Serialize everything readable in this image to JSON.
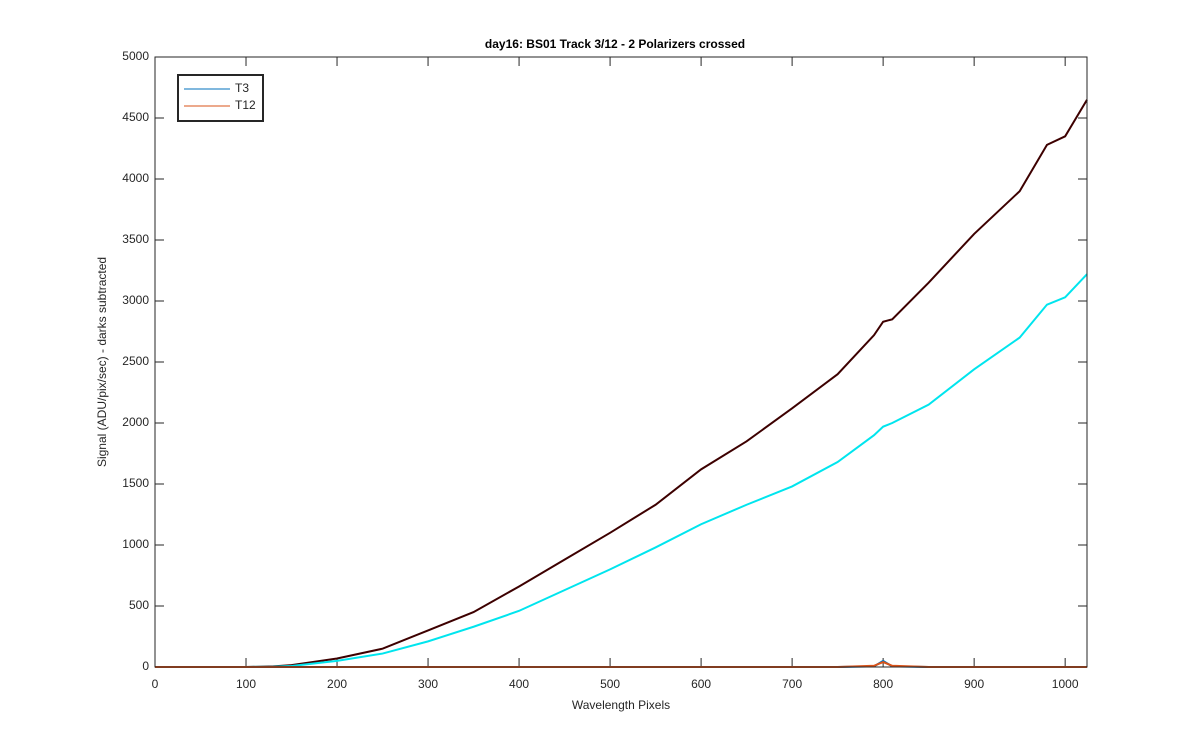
{
  "chart_data": {
    "type": "line",
    "title": "day16: BS01  Track 3/12 - 2 Polarizers crossed",
    "x_label": "Wavelength Pixels",
    "y_label": "Signal (ADU/pix/sec) - darks subtracted",
    "x": [
      0,
      50,
      100,
      130,
      150,
      200,
      250,
      300,
      350,
      400,
      450,
      500,
      550,
      600,
      650,
      700,
      750,
      790,
      800,
      810,
      850,
      900,
      950,
      980,
      1000,
      1024
    ],
    "series": [
      {
        "name": "T3",
        "color": "#0072bd",
        "values": [
          0,
          0,
          0,
          0,
          0,
          0,
          0,
          0,
          0,
          0,
          0,
          0,
          0,
          0,
          0,
          0,
          0,
          5,
          50,
          5,
          0,
          0,
          0,
          0,
          0,
          0
        ]
      },
      {
        "name": "T12",
        "color": "#d95319",
        "values": [
          0,
          0,
          0,
          0,
          0,
          0,
          0,
          0,
          0,
          0,
          0,
          0,
          0,
          0,
          0,
          0,
          0,
          10,
          40,
          10,
          0,
          0,
          0,
          0,
          0,
          0
        ]
      },
      {
        "color": "#3d0000",
        "values": [
          0,
          0,
          0,
          5,
          15,
          70,
          150,
          300,
          450,
          660,
          880,
          1100,
          1330,
          1620,
          1850,
          2120,
          2400,
          2720,
          2830,
          2850,
          3150,
          3550,
          3900,
          4280,
          4350,
          4650
        ]
      },
      {
        "color": "#00e5ee",
        "values": [
          0,
          0,
          0,
          2,
          8,
          50,
          110,
          210,
          330,
          460,
          630,
          800,
          980,
          1170,
          1330,
          1480,
          1680,
          1900,
          1970,
          2000,
          2150,
          2440,
          2700,
          2970,
          3030,
          3220
        ]
      }
    ],
    "xlim": [
      0,
      1024
    ],
    "xticks": [
      0,
      100,
      200,
      300,
      400,
      500,
      600,
      700,
      800,
      900,
      1000
    ],
    "ylim": [
      0,
      5000
    ],
    "yticks": [
      0,
      500,
      1000,
      1500,
      2000,
      2500,
      3000,
      3500,
      4000,
      4500,
      5000
    ],
    "grid": false,
    "legend": "upper left"
  }
}
